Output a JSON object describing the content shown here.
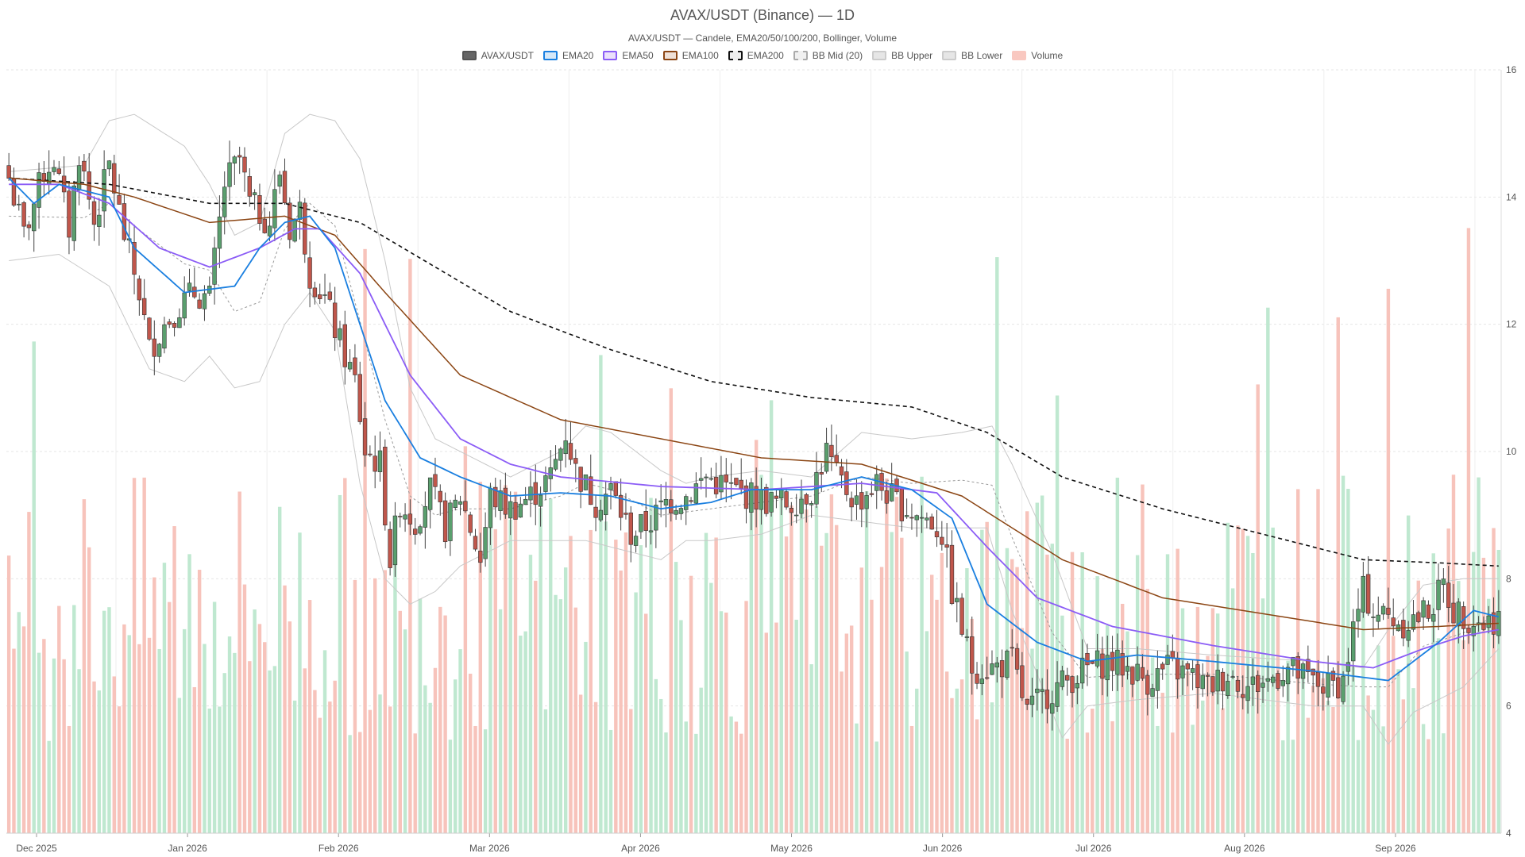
{
  "chart_data": {
    "type": "candlestick",
    "title": "AVAX/USDT (Binance) — 1D",
    "subtitle": "AVAX/USDT — Candele, EMA20/50/100/200, Bollinger, Volume",
    "legend": [
      {
        "label": "AVAX/USDT",
        "fill": "#666666",
        "stroke": "#555555",
        "dash": false
      },
      {
        "label": "EMA20",
        "fill": "#d6e8f8",
        "stroke": "#1a7fe0",
        "dash": false
      },
      {
        "label": "EMA50",
        "fill": "#ebe0fb",
        "stroke": "#8b5cf6",
        "dash": false
      },
      {
        "label": "EMA100",
        "fill": "#efe0d6",
        "stroke": "#8b4513",
        "dash": false
      },
      {
        "label": "EMA200",
        "fill": "#eeeeee",
        "stroke": "#111111",
        "dash": true
      },
      {
        "label": "BB Mid (20)",
        "fill": "#f0f0f0",
        "stroke": "#aaaaaa",
        "dash": true
      },
      {
        "label": "BB Upper",
        "fill": "#e6e6e6",
        "stroke": "#cccccc",
        "dash": false
      },
      {
        "label": "BB Lower",
        "fill": "#e6e6e6",
        "stroke": "#cccccc",
        "dash": false
      },
      {
        "label": "Volume",
        "fill": "#f9c8c0",
        "stroke": "#f9c8c0",
        "dash": false
      }
    ],
    "x_ticks": [
      "Dec 2025",
      "Jan 2026",
      "Feb 2026",
      "Mar 2026",
      "Apr 2026",
      "May 2026",
      "Jun 2026",
      "Jul 2026",
      "Aug 2026",
      "Sep 2026"
    ],
    "y_ticks": [
      4,
      6,
      8,
      10,
      12,
      14,
      16
    ],
    "ylim": [
      4,
      16
    ],
    "grid": true,
    "legend_position": "top-center",
    "colors": {
      "up": "#5a9f6e",
      "down": "#c0564b",
      "vol_up": "#bfe8d0",
      "vol_down": "#f7c3bb"
    },
    "ema_anchors": {
      "ema20": [
        [
          0,
          14.3
        ],
        [
          5,
          13.9
        ],
        [
          10,
          14.2
        ],
        [
          20,
          14.0
        ],
        [
          25,
          13.2
        ],
        [
          35,
          12.5
        ],
        [
          45,
          12.6
        ],
        [
          50,
          13.2
        ],
        [
          55,
          13.6
        ],
        [
          60,
          13.7
        ],
        [
          65,
          13.2
        ],
        [
          70,
          12.0
        ],
        [
          75,
          10.8
        ],
        [
          82,
          9.9
        ],
        [
          90,
          9.6
        ],
        [
          100,
          9.3
        ],
        [
          110,
          9.35
        ],
        [
          120,
          9.3
        ],
        [
          130,
          9.1
        ],
        [
          140,
          9.2
        ],
        [
          148,
          9.4
        ],
        [
          160,
          9.4
        ],
        [
          170,
          9.6
        ],
        [
          180,
          9.4
        ],
        [
          188,
          8.95
        ],
        [
          195,
          7.6
        ],
        [
          205,
          7.0
        ],
        [
          215,
          6.7
        ],
        [
          225,
          6.8
        ],
        [
          240,
          6.7
        ],
        [
          260,
          6.55
        ],
        [
          275,
          6.4
        ],
        [
          285,
          7.0
        ],
        [
          292,
          7.5
        ],
        [
          297,
          7.4
        ]
      ],
      "ema50": [
        [
          0,
          14.2
        ],
        [
          10,
          14.2
        ],
        [
          20,
          13.9
        ],
        [
          30,
          13.2
        ],
        [
          40,
          12.9
        ],
        [
          50,
          13.2
        ],
        [
          57,
          13.5
        ],
        [
          62,
          13.5
        ],
        [
          70,
          12.8
        ],
        [
          80,
          11.2
        ],
        [
          90,
          10.2
        ],
        [
          100,
          9.8
        ],
        [
          110,
          9.6
        ],
        [
          130,
          9.45
        ],
        [
          150,
          9.4
        ],
        [
          170,
          9.5
        ],
        [
          185,
          9.35
        ],
        [
          195,
          8.5
        ],
        [
          205,
          7.7
        ],
        [
          220,
          7.25
        ],
        [
          240,
          6.95
        ],
        [
          260,
          6.7
        ],
        [
          272,
          6.6
        ],
        [
          282,
          6.9
        ],
        [
          290,
          7.1
        ],
        [
          297,
          7.2
        ]
      ],
      "ema100": [
        [
          0,
          14.3
        ],
        [
          15,
          14.2
        ],
        [
          25,
          14.0
        ],
        [
          40,
          13.6
        ],
        [
          55,
          13.7
        ],
        [
          65,
          13.4
        ],
        [
          75,
          12.5
        ],
        [
          90,
          11.2
        ],
        [
          110,
          10.5
        ],
        [
          130,
          10.2
        ],
        [
          150,
          9.9
        ],
        [
          170,
          9.8
        ],
        [
          190,
          9.3
        ],
        [
          210,
          8.3
        ],
        [
          230,
          7.7
        ],
        [
          250,
          7.45
        ],
        [
          270,
          7.2
        ],
        [
          285,
          7.25
        ],
        [
          297,
          7.3
        ]
      ],
      "ema200": [
        [
          0,
          14.3
        ],
        [
          20,
          14.2
        ],
        [
          40,
          13.9
        ],
        [
          55,
          13.9
        ],
        [
          70,
          13.6
        ],
        [
          85,
          12.9
        ],
        [
          100,
          12.2
        ],
        [
          120,
          11.6
        ],
        [
          140,
          11.1
        ],
        [
          160,
          10.85
        ],
        [
          180,
          10.7
        ],
        [
          195,
          10.3
        ],
        [
          210,
          9.6
        ],
        [
          230,
          9.1
        ],
        [
          250,
          8.7
        ],
        [
          270,
          8.3
        ],
        [
          285,
          8.25
        ],
        [
          297,
          8.2
        ]
      ],
      "bb_upper": [
        [
          0,
          14.4
        ],
        [
          15,
          14.5
        ],
        [
          20,
          15.2
        ],
        [
          25,
          15.3
        ],
        [
          35,
          14.8
        ],
        [
          40,
          14.2
        ],
        [
          45,
          13.4
        ],
        [
          50,
          13.6
        ],
        [
          55,
          15.0
        ],
        [
          60,
          15.3
        ],
        [
          65,
          15.2
        ],
        [
          70,
          14.6
        ],
        [
          75,
          13.0
        ],
        [
          80,
          11.0
        ],
        [
          85,
          10.2
        ],
        [
          90,
          10.0
        ],
        [
          100,
          9.6
        ],
        [
          110,
          10.0
        ],
        [
          115,
          10.4
        ],
        [
          120,
          10.3
        ],
        [
          130,
          9.7
        ],
        [
          135,
          9.5
        ],
        [
          140,
          9.6
        ],
        [
          150,
          9.7
        ],
        [
          160,
          9.6
        ],
        [
          170,
          10.3
        ],
        [
          180,
          10.2
        ],
        [
          190,
          10.3
        ],
        [
          196,
          10.4
        ],
        [
          200,
          9.8
        ],
        [
          208,
          8.4
        ],
        [
          215,
          6.9
        ],
        [
          225,
          6.9
        ],
        [
          240,
          6.8
        ],
        [
          260,
          6.7
        ],
        [
          270,
          6.6
        ],
        [
          275,
          7.2
        ],
        [
          282,
          7.9
        ],
        [
          290,
          8.0
        ],
        [
          297,
          8.0
        ]
      ],
      "bb_lower": [
        [
          0,
          13.0
        ],
        [
          10,
          13.1
        ],
        [
          20,
          12.6
        ],
        [
          28,
          11.3
        ],
        [
          35,
          11.1
        ],
        [
          40,
          11.5
        ],
        [
          45,
          11.0
        ],
        [
          50,
          11.1
        ],
        [
          55,
          12.0
        ],
        [
          60,
          12.5
        ],
        [
          65,
          11.9
        ],
        [
          70,
          9.5
        ],
        [
          75,
          8.0
        ],
        [
          80,
          7.6
        ],
        [
          85,
          7.8
        ],
        [
          90,
          8.2
        ],
        [
          100,
          8.6
        ],
        [
          115,
          8.6
        ],
        [
          120,
          8.5
        ],
        [
          130,
          8.3
        ],
        [
          135,
          8.6
        ],
        [
          140,
          8.6
        ],
        [
          150,
          8.7
        ],
        [
          160,
          9.0
        ],
        [
          170,
          8.9
        ],
        [
          180,
          8.8
        ],
        [
          195,
          8.8
        ],
        [
          200,
          7.5
        ],
        [
          205,
          6.5
        ],
        [
          210,
          5.5
        ],
        [
          215,
          6.0
        ],
        [
          225,
          6.1
        ],
        [
          240,
          6.2
        ],
        [
          260,
          6.0
        ],
        [
          270,
          6.0
        ],
        [
          275,
          5.4
        ],
        [
          280,
          5.9
        ],
        [
          290,
          6.3
        ],
        [
          297,
          6.9
        ]
      ]
    },
    "close_anchors": [
      [
        0,
        14.3
      ],
      [
        3,
        13.4
      ],
      [
        7,
        14.4
      ],
      [
        9,
        14.6
      ],
      [
        12,
        13.5
      ],
      [
        14,
        14.7
      ],
      [
        17,
        13.6
      ],
      [
        20,
        14.5
      ],
      [
        23,
        13.4
      ],
      [
        26,
        12.5
      ],
      [
        28,
        11.6
      ],
      [
        31,
        12.0
      ],
      [
        34,
        12.3
      ],
      [
        37,
        12.5
      ],
      [
        40,
        12.4
      ],
      [
        43,
        14.2
      ],
      [
        46,
        14.6
      ],
      [
        48,
        13.9
      ],
      [
        52,
        13.6
      ],
      [
        54,
        14.4
      ],
      [
        56,
        13.5
      ],
      [
        58,
        13.8
      ],
      [
        60,
        12.8
      ],
      [
        63,
        12.4
      ],
      [
        66,
        11.7
      ],
      [
        69,
        11.1
      ],
      [
        71,
        10.0
      ],
      [
        74,
        9.8
      ],
      [
        76,
        8.3
      ],
      [
        78,
        9.2
      ],
      [
        81,
        8.9
      ],
      [
        84,
        9.4
      ],
      [
        87,
        8.8
      ],
      [
        90,
        9.3
      ],
      [
        94,
        8.3
      ],
      [
        96,
        9.3
      ],
      [
        100,
        9.1
      ],
      [
        104,
        9.3
      ],
      [
        108,
        9.6
      ],
      [
        111,
        10.3
      ],
      [
        113,
        9.7
      ],
      [
        117,
        9.2
      ],
      [
        120,
        9.4
      ],
      [
        124,
        8.7
      ],
      [
        128,
        8.9
      ],
      [
        131,
        9.2
      ],
      [
        135,
        9.3
      ],
      [
        139,
        9.6
      ],
      [
        144,
        9.4
      ],
      [
        148,
        9.3
      ],
      [
        152,
        9.2
      ],
      [
        156,
        9.2
      ],
      [
        160,
        9.4
      ],
      [
        163,
        10.0
      ],
      [
        165,
        9.6
      ],
      [
        169,
        9.2
      ],
      [
        173,
        9.5
      ],
      [
        177,
        9.2
      ],
      [
        181,
        9.0
      ],
      [
        184,
        8.9
      ],
      [
        186,
        8.7
      ],
      [
        188,
        7.8
      ],
      [
        190,
        7.2
      ],
      [
        192,
        6.6
      ],
      [
        196,
        6.6
      ],
      [
        200,
        6.7
      ],
      [
        203,
        5.9
      ],
      [
        207,
        6.2
      ],
      [
        211,
        6.4
      ],
      [
        215,
        6.6
      ],
      [
        219,
        6.7
      ],
      [
        223,
        6.6
      ],
      [
        227,
        6.4
      ],
      [
        231,
        6.6
      ],
      [
        235,
        6.5
      ],
      [
        239,
        6.3
      ],
      [
        243,
        6.5
      ],
      [
        247,
        6.3
      ],
      [
        251,
        6.4
      ],
      [
        255,
        6.6
      ],
      [
        259,
        6.4
      ],
      [
        263,
        6.3
      ],
      [
        266,
        6.4
      ],
      [
        268,
        7.2
      ],
      [
        270,
        7.8
      ],
      [
        272,
        7.5
      ],
      [
        275,
        7.4
      ],
      [
        278,
        7.3
      ],
      [
        281,
        7.4
      ],
      [
        284,
        7.6
      ],
      [
        286,
        7.9
      ],
      [
        288,
        7.5
      ],
      [
        291,
        7.4
      ],
      [
        294,
        7.3
      ],
      [
        297,
        7.4
      ]
    ]
  }
}
